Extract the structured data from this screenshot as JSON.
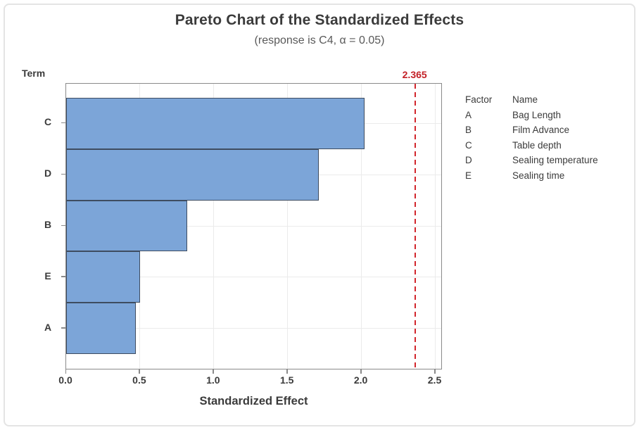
{
  "chart_data": {
    "type": "bar",
    "orientation": "horizontal",
    "title": "Pareto Chart of the Standardized Effects",
    "subtitle": "(response is C4, α = 0.05)",
    "xlabel": "Standardized Effect",
    "ylabel": "Term",
    "categories": [
      "C",
      "D",
      "B",
      "E",
      "A"
    ],
    "values": [
      2.02,
      1.71,
      0.82,
      0.5,
      0.47
    ],
    "xlim": [
      0,
      2.55
    ],
    "x_ticks": [
      0,
      0.5,
      1.0,
      1.5,
      2.0,
      2.5
    ],
    "x_tick_labels": [
      "0.0",
      "0.5",
      "1.0",
      "1.5",
      "2.0",
      "2.5"
    ],
    "grid": true,
    "reference_line": {
      "value": 2.365,
      "label": "2.365"
    },
    "legend": {
      "position": "right",
      "header": {
        "factor": "Factor",
        "name": "Name"
      },
      "rows": [
        {
          "factor": "A",
          "name": "Bag Length"
        },
        {
          "factor": "B",
          "name": "Film Advance"
        },
        {
          "factor": "C",
          "name": "Table depth"
        },
        {
          "factor": "D",
          "name": "Sealing temperature"
        },
        {
          "factor": "E",
          "name": "Sealing time"
        }
      ]
    },
    "colors": {
      "bar_fill": "#7ca5d8",
      "bar_border": "#3e4c60",
      "reference_line": "#d2262c",
      "reference_label": "#c32026",
      "frame": "#8a8a8a",
      "gridline": "#ebebeb",
      "title_text": "#3b3b3b",
      "subtitle_text": "#595959",
      "axis_text": "#3b3b3b",
      "legend_text": "#3b3b3b"
    }
  }
}
